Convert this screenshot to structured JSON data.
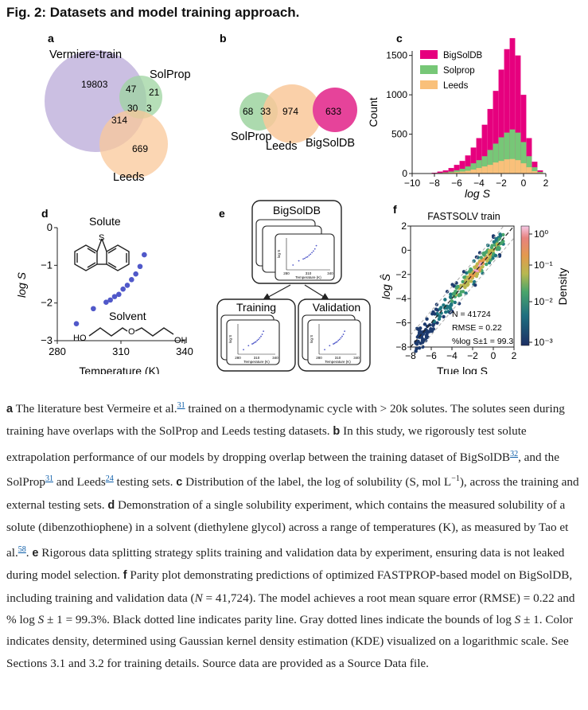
{
  "figure_title": "Fig. 2: Datasets and model training approach.",
  "panels": {
    "a": {
      "letter": "a",
      "labels": {
        "vermiere": "Vermiere-train",
        "solprop": "SolProp",
        "leeds": "Leeds"
      },
      "counts": {
        "v_only": "19803",
        "vs": "47",
        "s_only": "21",
        "vsl": "30",
        "sl": "3",
        "vl": "314",
        "l_only": "669"
      },
      "colors": {
        "vermiere": "#b9a9d8",
        "solprop": "#9ed4a0",
        "leeds": "#f9c89a"
      }
    },
    "b": {
      "letter": "b",
      "labels": {
        "solprop": "SolProp",
        "leeds": "Leeds",
        "bigsoldb": "BigSolDB"
      },
      "counts": {
        "s_only": "68",
        "sl": "33",
        "l_only": "974",
        "bigsoldb": "633"
      },
      "colors": {
        "solprop": "#9ed4a0",
        "leeds": "#f9c89a",
        "bigsoldb": "#e6439a"
      }
    },
    "c": {
      "letter": "c",
      "xlabel": "log S",
      "ylabel": "Count",
      "xticks": [
        "−10",
        "−8",
        "−6",
        "−4",
        "−2",
        "0",
        "2"
      ],
      "yticks": [
        "0",
        "500",
        "1000",
        "1500"
      ]
    },
    "d": {
      "letter": "d",
      "solute_label": "Solute",
      "solvent_label": "Solvent",
      "oh_left": "HO",
      "oh_right": "OH",
      "s_atom": "S",
      "o_atom": "O",
      "xlabel": "Temperature (K)",
      "ylabel": "log S",
      "xticks": [
        "280",
        "310",
        "340"
      ],
      "yticks": [
        "0",
        "−1",
        "−2",
        "−3"
      ]
    },
    "e": {
      "letter": "e",
      "top_label": "BigSolDB",
      "train_label": "Training",
      "val_label": "Validation",
      "mini_xlabel": "Temperature (K)",
      "mini_xticks": [
        "280",
        "310",
        "340"
      ],
      "mini_ylabel": "log S"
    },
    "f": {
      "letter": "f",
      "title": "FASTSOLV train",
      "xlabel": "True log S",
      "ylabel": "log Ŝ",
      "xticks": [
        "−8",
        "−6",
        "−4",
        "−2",
        "0",
        "2"
      ],
      "yticks": [
        "2",
        "0",
        "−2",
        "−4",
        "−6",
        "−8"
      ],
      "stats": [
        "N = 41724",
        "RMSE = 0.22",
        "%log S±1 = 99.3"
      ],
      "colorbar_label": "Density",
      "colorbar_ticks": [
        "10⁰",
        "10⁻¹",
        "10⁻²",
        "10⁻³"
      ]
    }
  },
  "chart_data": [
    {
      "panel": "c",
      "type": "bar",
      "xlabel": "log S",
      "ylabel": "Count",
      "xlim": [
        -10,
        2
      ],
      "ylim": [
        0,
        1800
      ],
      "legend_position": "top-left",
      "bin_centers": [
        -8.5,
        -8.0,
        -7.5,
        -7.0,
        -6.5,
        -6.0,
        -5.5,
        -5.0,
        -4.5,
        -4.0,
        -3.5,
        -3.0,
        -2.5,
        -2.0,
        -1.5,
        -1.0,
        -0.5,
        0.0,
        0.5,
        1.0,
        1.5
      ],
      "series": [
        {
          "name": "BigSolDB",
          "color": "#e6007e",
          "values": [
            5,
            10,
            25,
            40,
            70,
            110,
            160,
            230,
            330,
            450,
            620,
            820,
            1050,
            1320,
            1580,
            1720,
            1500,
            1000,
            450,
            150,
            40
          ]
        },
        {
          "name": "Solprop",
          "color": "#77c777",
          "values": [
            2,
            3,
            8,
            15,
            25,
            40,
            60,
            90,
            130,
            170,
            220,
            300,
            380,
            460,
            520,
            560,
            520,
            400,
            220,
            80,
            20
          ]
        },
        {
          "name": "Leeds",
          "color": "#f9c07a",
          "values": [
            1,
            2,
            4,
            8,
            12,
            18,
            25,
            35,
            50,
            70,
            90,
            110,
            140,
            160,
            180,
            185,
            170,
            130,
            80,
            30,
            10
          ]
        }
      ]
    },
    {
      "panel": "d",
      "type": "scatter",
      "xlabel": "Temperature (K)",
      "ylabel": "log S",
      "xlim": [
        280,
        340
      ],
      "ylim": [
        -3,
        0
      ],
      "series": [
        {
          "name": "",
          "color": "#5058c9",
          "x": [
            289,
            297,
            303,
            305,
            307,
            309,
            311,
            313,
            315,
            317,
            319,
            321
          ],
          "y": [
            -2.55,
            -2.15,
            -1.98,
            -1.92,
            -1.83,
            -1.77,
            -1.63,
            -1.53,
            -1.38,
            -1.23,
            -1.03,
            -0.72
          ]
        }
      ]
    },
    {
      "panel": "f",
      "type": "scatter",
      "xlabel": "True log S",
      "ylabel": "log Ŝ",
      "xlim": [
        -8,
        2
      ],
      "ylim": [
        -8,
        2
      ],
      "parity_line": "y = x",
      "bounds": "y = x ± 1",
      "N": 41724,
      "RMSE": 0.22,
      "pct_within_1": 99.3
    }
  ]
}
